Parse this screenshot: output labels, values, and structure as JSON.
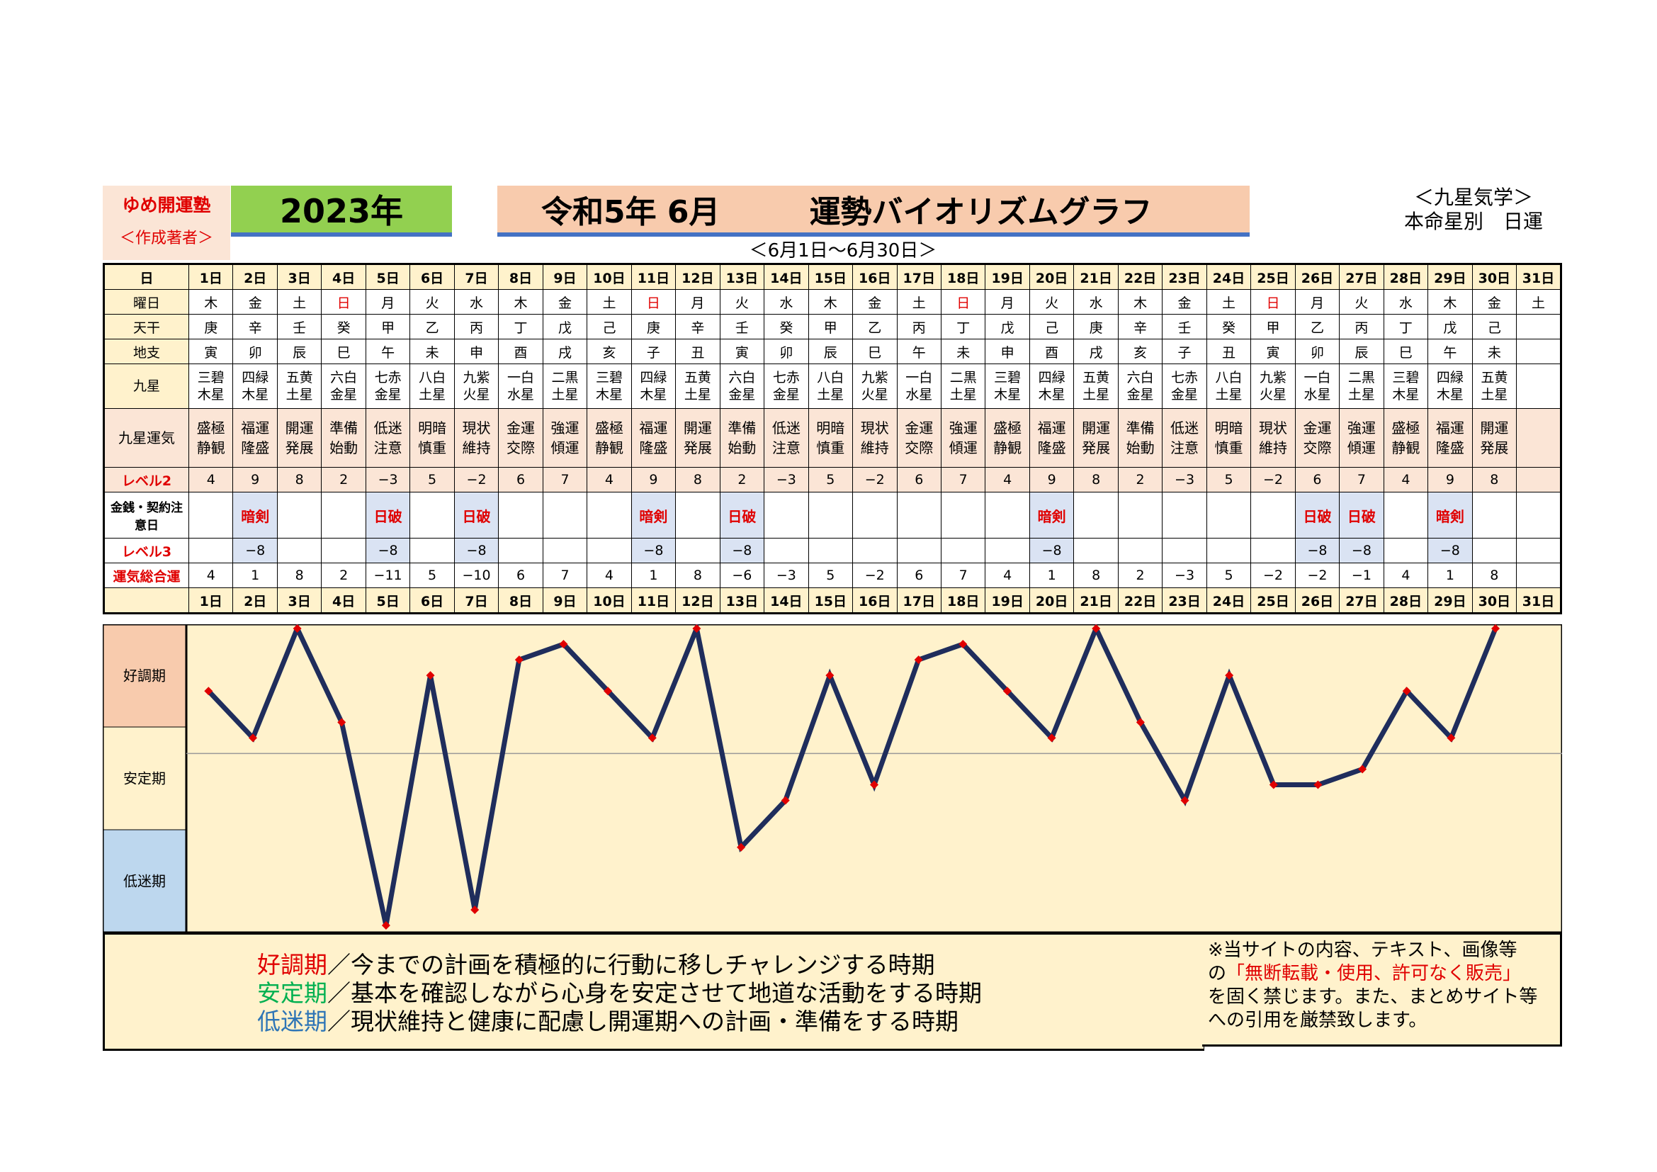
{
  "header": {
    "brand_line1": "ゆめ開運塾",
    "brand_line2": "＜作成著者＞",
    "year": "2023年",
    "title_part1": "令和5年 6月",
    "title_part2": "運勢バイオリズムグラフ",
    "period": "＜6月1日～6月30日＞",
    "study_line1": "＜九星気学＞",
    "study_line2": "本命星別　日運"
  },
  "row_labels": {
    "day": "日",
    "weekday": "曜日",
    "kan": "天干",
    "shi": "地支",
    "star": "九星",
    "unki": "九星運気",
    "level2": "レベル2",
    "money": "金銭・契約注意日",
    "level3": "レベル3",
    "total": "運気総合運"
  },
  "days": [
    "1日",
    "2日",
    "3日",
    "4日",
    "5日",
    "6日",
    "7日",
    "8日",
    "9日",
    "10日",
    "11日",
    "12日",
    "13日",
    "14日",
    "15日",
    "16日",
    "17日",
    "18日",
    "19日",
    "20日",
    "21日",
    "22日",
    "23日",
    "24日",
    "25日",
    "26日",
    "27日",
    "28日",
    "29日",
    "30日",
    "31日"
  ],
  "weekdays": [
    "木",
    "金",
    "土",
    "日",
    "月",
    "火",
    "水",
    "木",
    "金",
    "土",
    "日",
    "月",
    "火",
    "水",
    "木",
    "金",
    "土",
    "日",
    "月",
    "火",
    "水",
    "木",
    "金",
    "土",
    "日",
    "月",
    "火",
    "水",
    "木",
    "金",
    "土"
  ],
  "kan": [
    "庚",
    "辛",
    "壬",
    "癸",
    "甲",
    "乙",
    "丙",
    "丁",
    "戊",
    "己",
    "庚",
    "辛",
    "壬",
    "癸",
    "甲",
    "乙",
    "丙",
    "丁",
    "戊",
    "己",
    "庚",
    "辛",
    "壬",
    "癸",
    "甲",
    "乙",
    "丙",
    "丁",
    "戊",
    "己",
    ""
  ],
  "shi": [
    "寅",
    "卯",
    "辰",
    "巳",
    "午",
    "未",
    "申",
    "酉",
    "戌",
    "亥",
    "子",
    "丑",
    "寅",
    "卯",
    "辰",
    "巳",
    "午",
    "未",
    "申",
    "酉",
    "戌",
    "亥",
    "子",
    "丑",
    "寅",
    "卯",
    "辰",
    "巳",
    "午",
    "未",
    ""
  ],
  "stars": [
    [
      "三碧",
      "木星"
    ],
    [
      "四緑",
      "木星"
    ],
    [
      "五黄",
      "土星"
    ],
    [
      "六白",
      "金星"
    ],
    [
      "七赤",
      "金星"
    ],
    [
      "八白",
      "土星"
    ],
    [
      "九紫",
      "火星"
    ],
    [
      "一白",
      "水星"
    ],
    [
      "二黒",
      "土星"
    ],
    [
      "三碧",
      "木星"
    ],
    [
      "四緑",
      "木星"
    ],
    [
      "五黄",
      "土星"
    ],
    [
      "六白",
      "金星"
    ],
    [
      "七赤",
      "金星"
    ],
    [
      "八白",
      "土星"
    ],
    [
      "九紫",
      "火星"
    ],
    [
      "一白",
      "水星"
    ],
    [
      "二黒",
      "土星"
    ],
    [
      "三碧",
      "木星"
    ],
    [
      "四緑",
      "木星"
    ],
    [
      "五黄",
      "土星"
    ],
    [
      "六白",
      "金星"
    ],
    [
      "七赤",
      "金星"
    ],
    [
      "八白",
      "土星"
    ],
    [
      "九紫",
      "火星"
    ],
    [
      "一白",
      "水星"
    ],
    [
      "二黒",
      "土星"
    ],
    [
      "三碧",
      "木星"
    ],
    [
      "四緑",
      "木星"
    ],
    [
      "五黄",
      "土星"
    ],
    [
      "",
      ""
    ]
  ],
  "unki": [
    [
      "盛極",
      "静観"
    ],
    [
      "福運",
      "隆盛"
    ],
    [
      "開運",
      "発展"
    ],
    [
      "準備",
      "始動"
    ],
    [
      "低迷",
      "注意"
    ],
    [
      "明暗",
      "慎重"
    ],
    [
      "現状",
      "維持"
    ],
    [
      "金運",
      "交際"
    ],
    [
      "強運",
      "傾運"
    ],
    [
      "盛極",
      "静観"
    ],
    [
      "福運",
      "隆盛"
    ],
    [
      "開運",
      "発展"
    ],
    [
      "準備",
      "始動"
    ],
    [
      "低迷",
      "注意"
    ],
    [
      "明暗",
      "慎重"
    ],
    [
      "現状",
      "維持"
    ],
    [
      "金運",
      "交際"
    ],
    [
      "強運",
      "傾運"
    ],
    [
      "盛極",
      "静観"
    ],
    [
      "福運",
      "隆盛"
    ],
    [
      "開運",
      "発展"
    ],
    [
      "準備",
      "始動"
    ],
    [
      "低迷",
      "注意"
    ],
    [
      "明暗",
      "慎重"
    ],
    [
      "現状",
      "維持"
    ],
    [
      "金運",
      "交際"
    ],
    [
      "強運",
      "傾運"
    ],
    [
      "盛極",
      "静観"
    ],
    [
      "福運",
      "隆盛"
    ],
    [
      "開運",
      "発展"
    ],
    [
      "",
      ""
    ]
  ],
  "level2": [
    "4",
    "9",
    "8",
    "2",
    "−3",
    "5",
    "−2",
    "6",
    "7",
    "4",
    "9",
    "8",
    "2",
    "−3",
    "5",
    "−2",
    "6",
    "7",
    "4",
    "9",
    "8",
    "2",
    "−3",
    "5",
    "−2",
    "6",
    "7",
    "4",
    "9",
    "8",
    ""
  ],
  "money": [
    "",
    "暗剣",
    "",
    "",
    "日破",
    "",
    "日破",
    "",
    "",
    "",
    "暗剣",
    "",
    "日破",
    "",
    "",
    "",
    "",
    "",
    "",
    "暗剣",
    "",
    "",
    "",
    "",
    "",
    "日破",
    "日破",
    "",
    "暗剣",
    "",
    ""
  ],
  "level3": [
    "",
    "−8",
    "",
    "",
    "−8",
    "",
    "−8",
    "",
    "",
    "",
    "−8",
    "",
    "−8",
    "",
    "",
    "",
    "",
    "",
    "",
    "−8",
    "",
    "",
    "",
    "",
    "",
    "−8",
    "−8",
    "",
    "−8",
    "",
    ""
  ],
  "total": [
    "4",
    "1",
    "8",
    "2",
    "−11",
    "5",
    "−10",
    "6",
    "7",
    "4",
    "1",
    "8",
    "−6",
    "−3",
    "5",
    "−2",
    "6",
    "7",
    "4",
    "1",
    "8",
    "2",
    "−3",
    "5",
    "−2",
    "−2",
    "−1",
    "4",
    "1",
    "8",
    ""
  ],
  "chart_data": {
    "type": "line",
    "x": [
      1,
      2,
      3,
      4,
      5,
      6,
      7,
      8,
      9,
      10,
      11,
      12,
      13,
      14,
      15,
      16,
      17,
      18,
      19,
      20,
      21,
      22,
      23,
      24,
      25,
      26,
      27,
      28,
      29,
      30
    ],
    "series": [
      {
        "values": [
          4,
          1,
          8,
          2,
          -11,
          5,
          -10,
          6,
          7,
          4,
          1,
          8,
          -6,
          -3,
          5,
          -2,
          6,
          7,
          4,
          1,
          8,
          2,
          -3,
          5,
          -2,
          -2,
          -1,
          4,
          1,
          8
        ]
      }
    ],
    "ylim": [
      -11,
      8
    ],
    "band_labels": [
      "好調期",
      "安定期",
      "低迷期"
    ],
    "colors": {
      "line": "#1f2d5c",
      "marker": "#e00000",
      "plot_bg": "#fff2cc",
      "band_good": "#f8cbad",
      "band_stable": "#fff2cc",
      "band_low": "#bdd7ee"
    }
  },
  "legend": {
    "good_term": "好調期",
    "good_text": "／今までの計画を積極的に行動に移しチャレンジする時期",
    "stable_term": "安定期",
    "stable_text": "／基本を確認しながら心身を安定させて地道な活動をする時期",
    "low_term": "低迷期",
    "low_text": "／現状維持と健康に配慮し開運期への計画・準備をする時期"
  },
  "notice": {
    "line1": "※当サイトの内容、テキスト、画像等",
    "line2a": "の",
    "line2b": "「無断転載・使用、許可なく販売」",
    "line3": "を固く禁じます。また、まとめサイト等",
    "line4": "への引用を厳禁致します。"
  }
}
